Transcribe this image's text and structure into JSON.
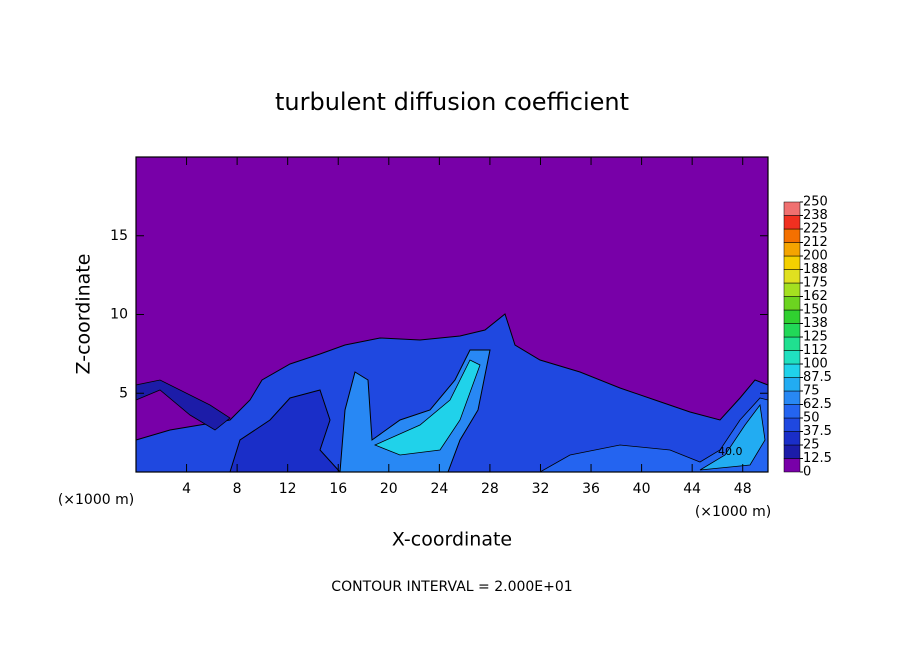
{
  "chart_data": {
    "type": "contour",
    "title": "turbulent diffusion coefficient",
    "x_label": "X-coordinate",
    "y_label": "Z-coordinate",
    "x_unit_left": "(×1000 m)",
    "x_unit_right": "(×1000 m)",
    "footnote": "CONTOUR INTERVAL = 2.000E+01",
    "annotations": [
      "40.0"
    ],
    "xlim": [
      0,
      50
    ],
    "xticks": [
      4,
      8,
      12,
      16,
      20,
      24,
      28,
      32,
      36,
      40,
      44,
      48
    ],
    "ylim": [
      0,
      20
    ],
    "yticks": [
      5,
      10,
      15
    ],
    "colorbar": {
      "ticks": [
        0,
        12.5,
        25,
        37.5,
        50,
        62.5,
        75,
        {
          "value": 87.5,
          "label": "87.5"
        },
        100,
        {
          "value": 112.5,
          "label": "112"
        },
        125,
        {
          "value": 137.5,
          "label": "138"
        },
        150,
        {
          "value": 162.5,
          "label": "162"
        },
        175,
        {
          "value": 187.5,
          "label": "188"
        },
        200,
        {
          "value": 212.5,
          "label": "212"
        },
        225,
        {
          "value": 237.5,
          "label": "238"
        },
        250
      ],
      "colors": [
        "#7800a8",
        "#1c1ca8",
        "#1a2ec8",
        "#1f48e0",
        "#2464f0",
        "#2888f4",
        "#22acf2",
        "#20d2ea",
        "#20e0c0",
        "#20e090",
        "#22d858",
        "#30d030",
        "#6cd420",
        "#a4e020",
        "#e0e020",
        "#f4d000",
        "#f4a400",
        "#f47000",
        "#f03020",
        "#f07070"
      ]
    }
  }
}
